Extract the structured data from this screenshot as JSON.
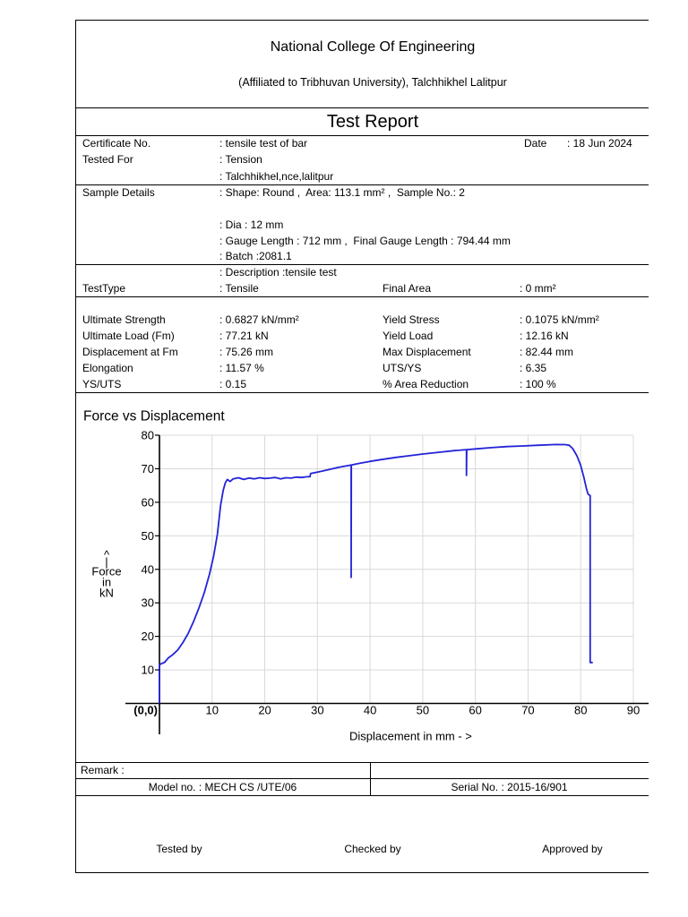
{
  "header": {
    "institution": "National College Of Engineering",
    "affiliation": "(Affiliated to Tribhuvan University), Talchhikhel Lalitpur",
    "report_title": "Test Report"
  },
  "certificate": {
    "certificate_label": "Certificate No.",
    "certificate_value": ": tensile test of bar",
    "date_label": "Date",
    "date_value": ": 18 Jun 2024",
    "tested_for_label": "Tested For",
    "tested_for_value": ": Tension",
    "address_value": ": Talchhikhel,nce,lalitpur"
  },
  "sample": {
    "label": "Sample Details",
    "shape_line": ": Shape: Round ,  Area: 113.1 mm² ,  Sample No.: 2",
    "dia_line": ": Dia : 12 mm",
    "gauge_line": ": Gauge Length : 712 mm ,  Final Gauge Length : 794.44 mm",
    "batch_line": ": Batch :2081.1",
    "description_line": ": Description :tensile test"
  },
  "test_type": {
    "label": "TestType",
    "value": ": Tensile",
    "final_area_label": "Final Area",
    "final_area_value": ": 0 mm²"
  },
  "results": [
    {
      "label": "Ultimate Strength",
      "value": ": 0.6827 kN/mm²",
      "label2": "Yield Stress",
      "value2": ": 0.1075 kN/mm²"
    },
    {
      "label": "Ultimate Load (Fm)",
      "value": ": 77.21 kN",
      "label2": "Yield Load",
      "value2": ": 12.16 kN"
    },
    {
      "label": "Displacement at Fm",
      "value": ": 75.26 mm",
      "label2": "Max Displacement",
      "value2": ": 82.44 mm"
    },
    {
      "label": "Elongation",
      "value": ": 11.57 %",
      "label2": "UTS/YS",
      "value2": ": 6.35"
    },
    {
      "label": "YS/UTS",
      "value": ": 0.15",
      "label2": "% Area Reduction",
      "value2": ": 100 %"
    }
  ],
  "chart_data": {
    "type": "line",
    "title": "Force vs Displacement",
    "xlabel": "Displacement in mm - >",
    "ylabel": [
      "^",
      "|",
      "Force",
      "in",
      "kN"
    ],
    "origin_label": "(0,0)",
    "xlim": [
      0,
      90
    ],
    "ylim": [
      0,
      80
    ],
    "xticks": [
      10,
      20,
      30,
      40,
      50,
      60,
      70,
      80,
      90
    ],
    "yticks": [
      10,
      20,
      30,
      40,
      50,
      60,
      70,
      80
    ],
    "grid": true,
    "line_color": "#2323d8",
    "series": [
      {
        "x": [
          0,
          0,
          0.3,
          1,
          1.7,
          2.5,
          3.5,
          4.5,
          5.5,
          6.5,
          7.5,
          8.5,
          9.5,
          10.3,
          11,
          11.6,
          12.1,
          12.5,
          12.9,
          13.4,
          14,
          15,
          16,
          17,
          18,
          19,
          20,
          21,
          22,
          23,
          24,
          25,
          26,
          27,
          28,
          28.6,
          28.7,
          30,
          32,
          34,
          36,
          36.4,
          36.4,
          36.45,
          38,
          40,
          42,
          45,
          48,
          50,
          53,
          56,
          58.3,
          58.3,
          58.35,
          60,
          63,
          66,
          69,
          72,
          75.26,
          77,
          77.8,
          78.5,
          79.3,
          80,
          80.6,
          81.1,
          81.4,
          81.8,
          81.8,
          82.3
        ],
        "y": [
          0,
          11.5,
          11.8,
          12.3,
          13.6,
          14.5,
          16,
          18.3,
          21,
          24.5,
          28.5,
          33,
          38.5,
          44,
          50.5,
          59,
          63.5,
          65.8,
          66.8,
          66.2,
          67,
          67.3,
          66.8,
          67.2,
          67.0,
          67.3,
          67.1,
          67.2,
          67.4,
          67.0,
          67.3,
          67.2,
          67.5,
          67.4,
          67.6,
          67.6,
          68.6,
          69.0,
          69.7,
          70.4,
          71.0,
          71.1,
          37.6,
          71.1,
          71.6,
          72.2,
          72.7,
          73.4,
          74.0,
          74.4,
          74.9,
          75.4,
          75.7,
          68.0,
          75.7,
          75.9,
          76.3,
          76.6,
          76.8,
          77.0,
          77.21,
          77.2,
          77.0,
          76.0,
          73.8,
          71.0,
          67.5,
          64.0,
          62.4,
          62.0,
          12.2,
          12.2
        ]
      }
    ]
  },
  "footer": {
    "remark_label": "Remark :",
    "model_no": "Model no. : MECH CS /UTE/06",
    "serial_no": "Serial No. : 2015-16/901",
    "signatures": [
      "Tested by",
      "Checked by",
      "Approved by"
    ]
  }
}
